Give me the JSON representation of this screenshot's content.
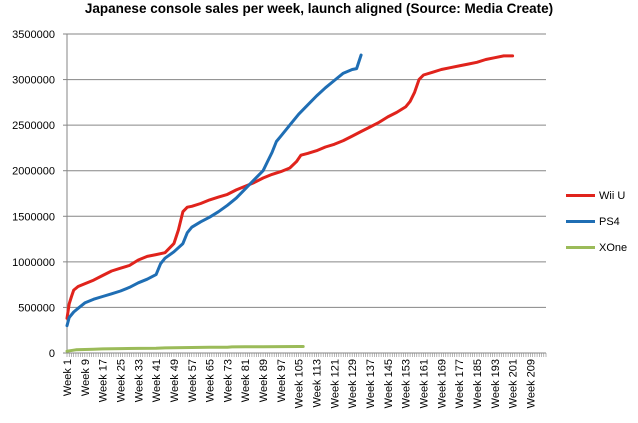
{
  "chart_data": {
    "type": "line",
    "title": "Japanese console sales per week, launch aligned (Source: Media Create)",
    "xlabel": "",
    "ylabel": "",
    "ylim": [
      0,
      3500000
    ],
    "y_ticks": [
      "0",
      "500000",
      "1000000",
      "1500000",
      "2000000",
      "2500000",
      "3000000",
      "3500000"
    ],
    "x_ticks": [
      "Week 1",
      "Week 9",
      "Week 17",
      "Week 25",
      "Week 33",
      "Week 41",
      "Week 49",
      "Week 57",
      "Week 65",
      "Week 73",
      "Week 81",
      "Week 89",
      "Week 97",
      "Week 105",
      "Week 113",
      "Week 121",
      "Week 129",
      "Week 137",
      "Week 145",
      "Week 153",
      "Week 161",
      "Week 169",
      "Week 177",
      "Week 185",
      "Week 193",
      "Week 201",
      "Week 209"
    ],
    "x_range": [
      1,
      216
    ],
    "grid": true,
    "legend_position": "right",
    "series": [
      {
        "name": "Wii U",
        "color": "#e0231c",
        "points": [
          [
            1,
            380000
          ],
          [
            2,
            540000
          ],
          [
            3,
            620000
          ],
          [
            4,
            690000
          ],
          [
            6,
            730000
          ],
          [
            9,
            760000
          ],
          [
            13,
            800000
          ],
          [
            17,
            850000
          ],
          [
            21,
            900000
          ],
          [
            25,
            930000
          ],
          [
            29,
            960000
          ],
          [
            33,
            1020000
          ],
          [
            37,
            1060000
          ],
          [
            41,
            1080000
          ],
          [
            45,
            1100000
          ],
          [
            49,
            1200000
          ],
          [
            51,
            1350000
          ],
          [
            53,
            1550000
          ],
          [
            55,
            1600000
          ],
          [
            57,
            1610000
          ],
          [
            61,
            1640000
          ],
          [
            65,
            1680000
          ],
          [
            69,
            1710000
          ],
          [
            73,
            1740000
          ],
          [
            77,
            1790000
          ],
          [
            81,
            1830000
          ],
          [
            85,
            1870000
          ],
          [
            89,
            1920000
          ],
          [
            93,
            1960000
          ],
          [
            97,
            1990000
          ],
          [
            101,
            2030000
          ],
          [
            104,
            2100000
          ],
          [
            106,
            2170000
          ],
          [
            109,
            2190000
          ],
          [
            113,
            2220000
          ],
          [
            117,
            2260000
          ],
          [
            121,
            2290000
          ],
          [
            125,
            2330000
          ],
          [
            129,
            2380000
          ],
          [
            133,
            2430000
          ],
          [
            137,
            2480000
          ],
          [
            141,
            2530000
          ],
          [
            145,
            2590000
          ],
          [
            149,
            2640000
          ],
          [
            153,
            2700000
          ],
          [
            155,
            2760000
          ],
          [
            157,
            2860000
          ],
          [
            159,
            3000000
          ],
          [
            161,
            3050000
          ],
          [
            165,
            3080000
          ],
          [
            169,
            3110000
          ],
          [
            173,
            3130000
          ],
          [
            177,
            3150000
          ],
          [
            181,
            3170000
          ],
          [
            185,
            3190000
          ],
          [
            189,
            3220000
          ],
          [
            193,
            3240000
          ],
          [
            197,
            3260000
          ],
          [
            201,
            3260000
          ]
        ]
      },
      {
        "name": "PS4",
        "color": "#1f6eb4",
        "points": [
          [
            1,
            300000
          ],
          [
            2,
            390000
          ],
          [
            4,
            450000
          ],
          [
            6,
            490000
          ],
          [
            9,
            550000
          ],
          [
            13,
            590000
          ],
          [
            17,
            620000
          ],
          [
            21,
            650000
          ],
          [
            25,
            680000
          ],
          [
            29,
            720000
          ],
          [
            33,
            770000
          ],
          [
            37,
            810000
          ],
          [
            41,
            860000
          ],
          [
            43,
            980000
          ],
          [
            45,
            1040000
          ],
          [
            49,
            1110000
          ],
          [
            53,
            1200000
          ],
          [
            55,
            1320000
          ],
          [
            57,
            1380000
          ],
          [
            61,
            1440000
          ],
          [
            65,
            1490000
          ],
          [
            69,
            1550000
          ],
          [
            73,
            1620000
          ],
          [
            77,
            1700000
          ],
          [
            81,
            1800000
          ],
          [
            85,
            1900000
          ],
          [
            89,
            2000000
          ],
          [
            91,
            2100000
          ],
          [
            93,
            2200000
          ],
          [
            95,
            2320000
          ],
          [
            97,
            2380000
          ],
          [
            101,
            2500000
          ],
          [
            105,
            2620000
          ],
          [
            109,
            2720000
          ],
          [
            113,
            2820000
          ],
          [
            117,
            2910000
          ],
          [
            121,
            2990000
          ],
          [
            125,
            3070000
          ],
          [
            129,
            3110000
          ],
          [
            131,
            3120000
          ],
          [
            133,
            3270000
          ]
        ]
      },
      {
        "name": "XOne",
        "color": "#9bbb59",
        "points": [
          [
            1,
            20000
          ],
          [
            5,
            35000
          ],
          [
            9,
            38000
          ],
          [
            13,
            42000
          ],
          [
            17,
            45000
          ],
          [
            25,
            48000
          ],
          [
            33,
            50000
          ],
          [
            41,
            52000
          ],
          [
            45,
            56000
          ],
          [
            49,
            58000
          ],
          [
            57,
            60000
          ],
          [
            65,
            62000
          ],
          [
            73,
            63000
          ],
          [
            75,
            67000
          ],
          [
            81,
            68000
          ],
          [
            89,
            69000
          ],
          [
            97,
            70000
          ],
          [
            105,
            71000
          ],
          [
            107,
            71000
          ]
        ]
      }
    ]
  }
}
